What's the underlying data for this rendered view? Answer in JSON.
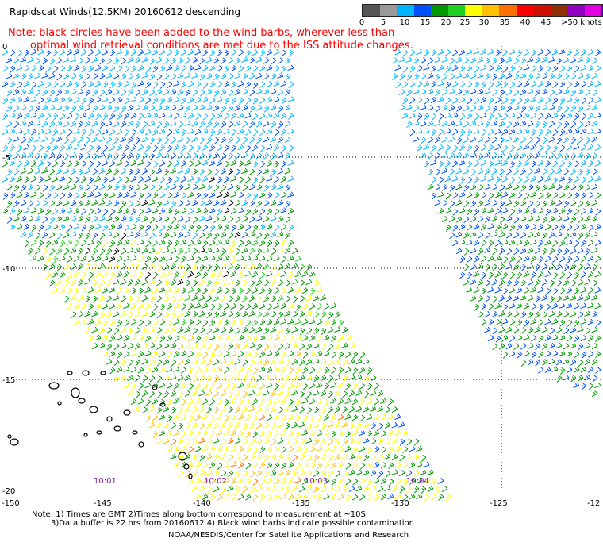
{
  "title": "Rapidscat Winds(12.5KM) 20160612 descending",
  "note_line1": "Note: black circles have been added to the wind barbs, wherever less than",
  "note_line2": "optimal wind retrieval conditions are met due to the ISS attitude changes.",
  "legend": {
    "labels": [
      "0",
      "5",
      "10",
      "15",
      "20",
      "25",
      "30",
      "35",
      "40",
      "45",
      ">50 knots"
    ],
    "colors": [
      "#555555",
      "#9a9a9a",
      "#00b4ff",
      "#0050ff",
      "#009800",
      "#20d020",
      "#ffff00",
      "#ffc000",
      "#ff7000",
      "#ff0000",
      "#d01000",
      "#903000",
      "#9000c0",
      "#e000e0",
      "#401080"
    ]
  },
  "axes": {
    "lat_labels": [
      "0",
      "-5",
      "-10",
      "-15",
      "-20"
    ],
    "lon_labels": [
      "-150",
      "-145",
      "-140",
      "-135",
      "-130",
      "-125",
      "-12"
    ]
  },
  "times": [
    "10:01",
    "10:02",
    "10:03",
    "10:04"
  ],
  "footer": {
    "line1": "Note: 1) Times are GMT 2)Times along bottom correspond to measurement at ~10S",
    "line2": "3)Data buffer is 22 hrs from 20160612 4) Black wind barbs indicate possible contamination",
    "line3": "NOAA/NESDIS/Center for Satellite Applications and Research"
  },
  "colors": {
    "note_red": "#ff0000",
    "time_label": "#7b1fa2",
    "grid": "#000000",
    "coast": "#000000"
  }
}
